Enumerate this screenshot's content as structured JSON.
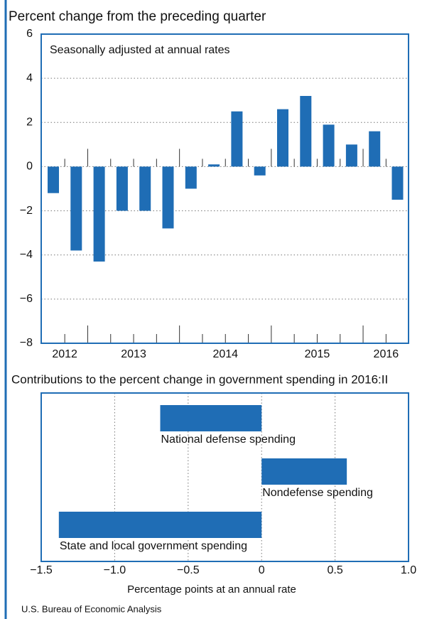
{
  "source": "U.S. Bureau of Economic Analysis",
  "chart_data": [
    {
      "type": "bar",
      "title": "Percent change from the preceding quarter",
      "subtitle": "Seasonally adjusted at annual rates",
      "x_labels": [
        "2012",
        "2013",
        "2014",
        "2015",
        "2016"
      ],
      "values": [
        -1.2,
        -3.8,
        -4.3,
        -2.0,
        -2.0,
        -2.8,
        -1.0,
        0.1,
        2.5,
        -0.4,
        2.6,
        3.2,
        1.9,
        1.0,
        1.6,
        -1.5
      ],
      "color": "#1f6db5",
      "ylim": [
        -8,
        6
      ],
      "yticks": [
        {
          "value": -8,
          "label": "−8"
        },
        {
          "value": -6,
          "label": "−6"
        },
        {
          "value": -4,
          "label": "−4"
        },
        {
          "value": -2,
          "label": "−2"
        },
        0,
        2,
        4,
        6
      ],
      "grid": true
    },
    {
      "type": "barh",
      "title": "Contributions to the percent change in government spending in 2016:II",
      "categories": [
        "National defense spending",
        "Nondefense spending",
        "State and local government spending"
      ],
      "values": [
        -0.69,
        0.58,
        -1.38
      ],
      "color": "#1f6db5",
      "xlabel": "Percentage points at an annual rate",
      "xlim": [
        -1.5,
        1.0
      ],
      "xticks": [
        {
          "value": -1.5,
          "label": "−1.5"
        },
        {
          "value": -1.0,
          "label": "−1.0"
        },
        {
          "value": -0.5,
          "label": "−0.5"
        },
        0,
        0.5,
        {
          "value": 1.0,
          "label": "1.0"
        }
      ],
      "grid": true
    }
  ]
}
